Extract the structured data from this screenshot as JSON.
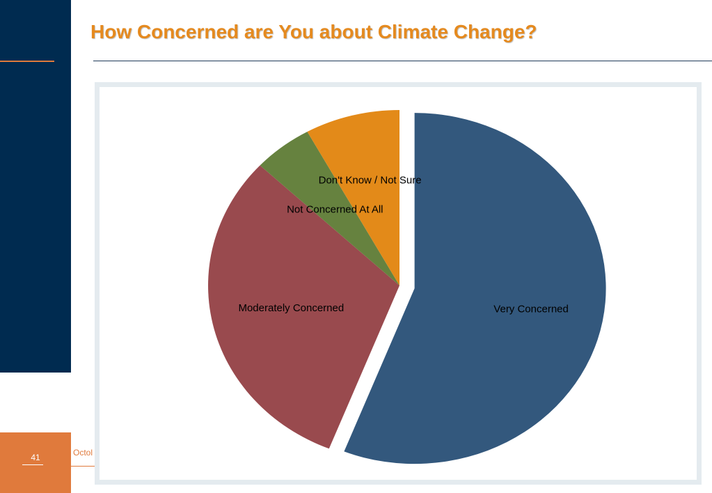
{
  "slide": {
    "title": "How Concerned are You about Climate Change?",
    "page_number": "41",
    "footer_text": "Octol"
  },
  "colors": {
    "sidebar": "#002b50",
    "accent": "#e07a3c",
    "title": "#e58a1f"
  },
  "chart_data": {
    "type": "pie",
    "title": "",
    "categories": [
      "Very Concerned",
      "Moderately Concerned",
      "Not Concerned At All",
      "Don't Know / Not Sure"
    ],
    "values": [
      56,
      31,
      5,
      8
    ],
    "colors": [
      "#33587d",
      "#994a4e",
      "#66823f",
      "#e38a19"
    ],
    "exploded": "Very Concerned",
    "start": "12 o'clock, clockwise",
    "legend": "none; labels on slices"
  }
}
